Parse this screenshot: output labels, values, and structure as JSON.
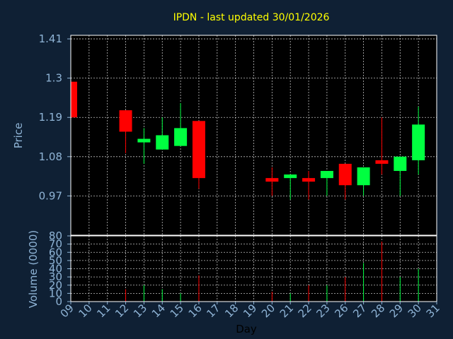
{
  "chart_data": {
    "type": "candlestick",
    "title": "IPDN - last updated 30/01/2026",
    "xlabel": "Day",
    "ylabel": "Price",
    "volume_label": "Volume (0000)",
    "x_tick_labels": [
      "09",
      "10",
      "11",
      "12",
      "13",
      "14",
      "15",
      "16",
      "17",
      "18",
      "19",
      "20",
      "21",
      "22",
      "23",
      "26",
      "27",
      "28",
      "29",
      "30",
      "31"
    ],
    "y_tick_labels": [
      "0.97",
      "1.08",
      "1.19",
      "1.3",
      "1.41"
    ],
    "y_ticks": [
      0.97,
      1.08,
      1.19,
      1.3,
      1.41
    ],
    "price_range": [
      0.86,
      1.42
    ],
    "volume_tick_labels": [
      "0",
      "10",
      "20",
      "30",
      "40",
      "50",
      "60",
      "70",
      "80"
    ],
    "volume_range": [
      0,
      80
    ],
    "colors": {
      "up": "#00ff40",
      "down": "#ff0000",
      "title": "#ffff00",
      "axis_text": "#8fb4d6",
      "grid": "#ffffff"
    },
    "grid": true,
    "candles": [
      {
        "day": "09",
        "open": 1.29,
        "high": 1.29,
        "low": 1.19,
        "close": 1.19,
        "volume": 0
      },
      {
        "day": "12",
        "open": 1.21,
        "high": 1.21,
        "low": 1.09,
        "close": 1.15,
        "volume": 15
      },
      {
        "day": "13",
        "open": 1.12,
        "high": 1.16,
        "low": 1.06,
        "close": 1.13,
        "volume": 20
      },
      {
        "day": "14",
        "open": 1.1,
        "high": 1.19,
        "low": 1.1,
        "close": 1.14,
        "volume": 15
      },
      {
        "day": "15",
        "open": 1.11,
        "high": 1.23,
        "low": 1.11,
        "close": 1.16,
        "volume": 10
      },
      {
        "day": "16",
        "open": 1.18,
        "high": 1.18,
        "low": 0.99,
        "close": 1.02,
        "volume": 32
      },
      {
        "day": "20",
        "open": 1.02,
        "high": 1.05,
        "low": 0.97,
        "close": 1.01,
        "volume": 12
      },
      {
        "day": "21",
        "open": 1.02,
        "high": 1.03,
        "low": 0.96,
        "close": 1.03,
        "volume": 10
      },
      {
        "day": "22",
        "open": 1.02,
        "high": 1.04,
        "low": 0.96,
        "close": 1.01,
        "volume": 20
      },
      {
        "day": "23",
        "open": 1.02,
        "high": 1.04,
        "low": 0.97,
        "close": 1.04,
        "volume": 20
      },
      {
        "day": "26",
        "open": 1.06,
        "high": 1.06,
        "low": 0.96,
        "close": 1.0,
        "volume": 30
      },
      {
        "day": "27",
        "open": 1.0,
        "high": 1.05,
        "low": 0.97,
        "close": 1.05,
        "volume": 47
      },
      {
        "day": "28",
        "open": 1.07,
        "high": 1.19,
        "low": 1.03,
        "close": 1.06,
        "volume": 73
      },
      {
        "day": "29",
        "open": 1.04,
        "high": 1.08,
        "low": 0.97,
        "close": 1.08,
        "volume": 30
      },
      {
        "day": "30",
        "open": 1.07,
        "high": 1.22,
        "low": 1.03,
        "close": 1.17,
        "volume": 40
      }
    ]
  }
}
